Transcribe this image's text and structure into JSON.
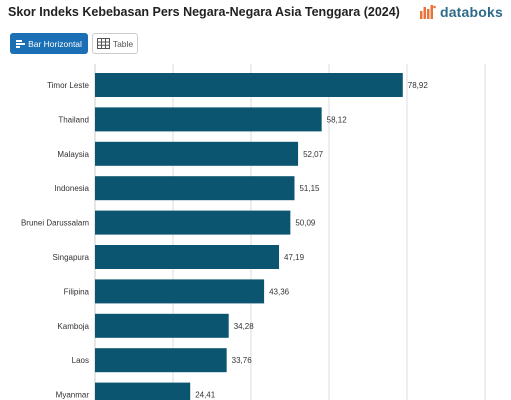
{
  "header": {
    "title": "Skor Indeks Kebebasan Pers Negara-Negara Asia Tenggara (2024)",
    "logo_text": "databoks",
    "logo_icon": "databoks-logo-icon"
  },
  "toolbar": {
    "bar_horizontal_label": "Bar Horizontal",
    "table_label": "Table"
  },
  "colors": {
    "bar": "#0b5571",
    "grid": "#dddddd",
    "accent": "#1b6fb5",
    "logo_orange": "#e8743b"
  },
  "chart_data": {
    "type": "bar",
    "orientation": "horizontal",
    "title": "Skor Indeks Kebebasan Pers Negara-Negara Asia Tenggara (2024)",
    "categories": [
      "Timor Leste",
      "Thailand",
      "Malaysia",
      "Indonesia",
      "Brunei Darussalam",
      "Singapura",
      "Filipina",
      "Kamboja",
      "Laos",
      "Myanmar"
    ],
    "values": [
      78.92,
      58.12,
      52.07,
      51.15,
      50.09,
      47.19,
      43.36,
      34.28,
      33.76,
      24.41
    ],
    "value_labels": [
      "78,92",
      "58,12",
      "52,07",
      "51,15",
      "50,09",
      "47,19",
      "43,36",
      "34,28",
      "33,76",
      "24,41"
    ],
    "xlim": [
      0,
      100
    ],
    "grid": true
  }
}
